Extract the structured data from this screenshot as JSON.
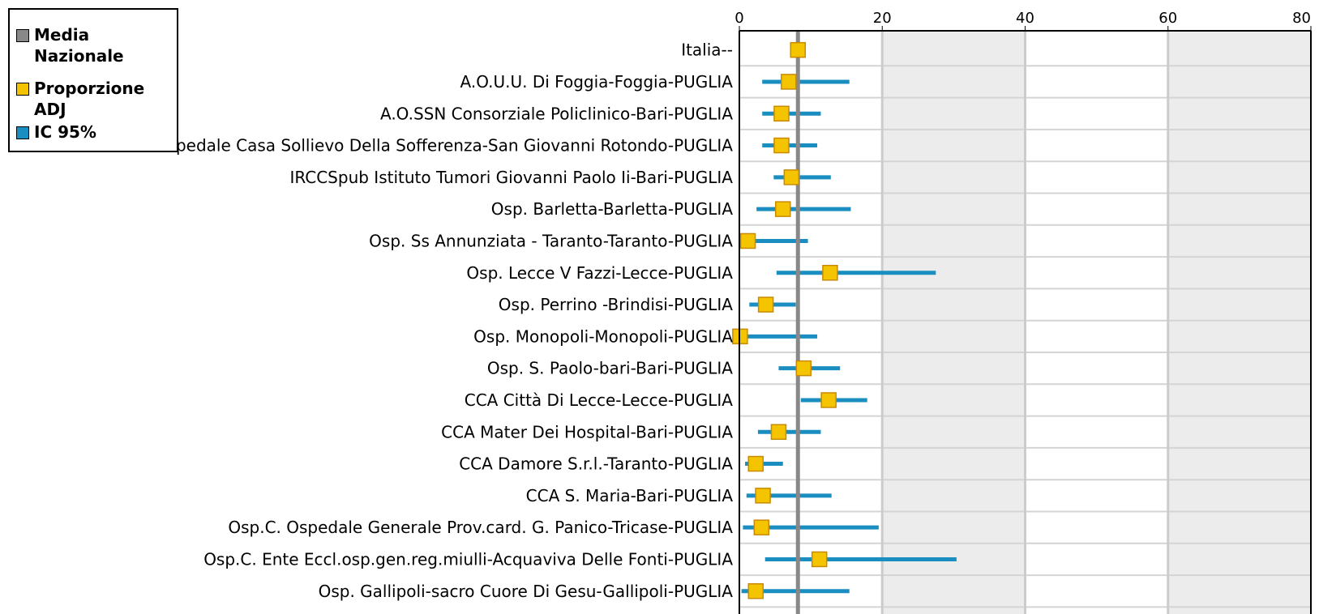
{
  "legend": {
    "items": [
      {
        "label": "Media Nazionale",
        "color": "#888888"
      },
      {
        "label": "Proporzione ADJ",
        "color": "#f5c400"
      },
      {
        "label": "IC 95%",
        "color": "#1a8ec0"
      }
    ]
  },
  "chart_data": {
    "type": "scatter",
    "title": "",
    "xlabel": "",
    "ylabel": "",
    "xlim": [
      0,
      80
    ],
    "xticks": [
      0,
      20,
      40,
      60,
      80
    ],
    "reference_line": {
      "name": "Media Nazionale",
      "value": 8.2
    },
    "grid": true,
    "legend_position": "top-left",
    "series": [
      {
        "name": "Proporzione ADJ",
        "type": "point"
      },
      {
        "name": "IC 95%",
        "type": "interval"
      }
    ],
    "categories": [
      "Italia--",
      "A.O.U.U. Di Foggia-Foggia-PUGLIA",
      "A.O.SSN Consorziale Policlinico-Bari-PUGLIA",
      "IRCCSf Ospedale Casa Sollievo Della Sofferenza-San Giovanni Rotondo-PUGLIA",
      "IRCCSpub Istituto Tumori Giovanni Paolo Ii-Bari-PUGLIA",
      "Osp. Barletta-Barletta-PUGLIA",
      "Osp. Ss Annunziata - Taranto-Taranto-PUGLIA",
      "Osp. Lecce V Fazzi-Lecce-PUGLIA",
      "Osp. Perrino -Brindisi-PUGLIA",
      "Osp. Monopoli-Monopoli-PUGLIA",
      "Osp. S. Paolo-bari-Bari-PUGLIA",
      "CCA Città Di Lecce-Lecce-PUGLIA",
      "CCA Mater Dei Hospital-Bari-PUGLIA",
      "CCA Damore S.r.l.-Taranto-PUGLIA",
      "CCA S. Maria-Bari-PUGLIA",
      "Osp.C. Ospedale Generale Prov.card. G. Panico-Tricase-PUGLIA",
      "Osp.C. Ente Eccl.osp.gen.reg.miulli-Acquaviva Delle Fonti-PUGLIA",
      "Osp. Gallipoli-sacro Cuore Di Gesu-Gallipoli-PUGLIA"
    ],
    "values": [
      8.2,
      6.9,
      5.9,
      5.9,
      7.3,
      6.1,
      1.2,
      12.7,
      3.7,
      0.1,
      9.0,
      12.5,
      5.5,
      2.3,
      3.3,
      3.1,
      11.2,
      2.3
    ],
    "ci_low": [
      null,
      3.2,
      3.2,
      3.2,
      4.8,
      2.4,
      0.3,
      5.2,
      1.4,
      0.0,
      5.5,
      8.6,
      2.6,
      0.8,
      1.0,
      0.5,
      3.6,
      0.3
    ],
    "ci_high": [
      null,
      15.4,
      11.4,
      10.9,
      12.8,
      15.6,
      9.6,
      27.5,
      7.9,
      10.9,
      14.1,
      17.9,
      11.4,
      6.1,
      12.9,
      19.5,
      30.4,
      15.4
    ]
  }
}
